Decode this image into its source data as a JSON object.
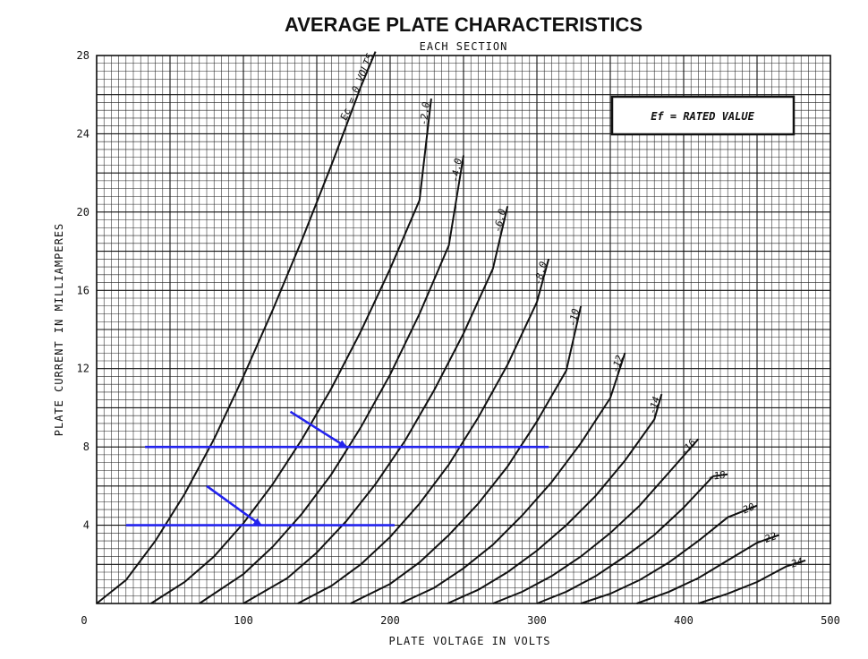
{
  "chart_data": {
    "type": "line",
    "title": "AVERAGE PLATE CHARACTERISTICS",
    "subtitle": "EACH SECTION",
    "xlabel": "PLATE VOLTAGE IN VOLTS",
    "ylabel": "PLATE CURRENT IN MILLIAMPERES",
    "xlim": [
      0,
      500
    ],
    "ylim": [
      0,
      28
    ],
    "xticks": [
      "0",
      "100",
      "200",
      "300",
      "400",
      "500"
    ],
    "yticks": [
      "4",
      "8",
      "12",
      "16",
      "20",
      "24",
      "28"
    ],
    "grid": true,
    "annotation": "Ef = RATED VALUE",
    "series": [
      {
        "name": "Ec = 0 VOLTS",
        "x": [
          0,
          20,
          40,
          60,
          80,
          100,
          120,
          140,
          160,
          180,
          190
        ],
        "y": [
          0,
          1.2,
          3.2,
          5.6,
          8.4,
          11.6,
          15.0,
          18.6,
          22.4,
          26.4,
          28.2
        ]
      },
      {
        "name": "-2.0",
        "x": [
          37,
          60,
          80,
          100,
          120,
          140,
          160,
          180,
          200,
          220,
          228
        ],
        "y": [
          0,
          1.1,
          2.4,
          4.1,
          6.1,
          8.4,
          11.0,
          13.9,
          17.1,
          20.6,
          25.8
        ]
      },
      {
        "name": "-4.0",
        "x": [
          70,
          100,
          120,
          140,
          160,
          180,
          200,
          220,
          240,
          250
        ],
        "y": [
          0,
          1.5,
          2.9,
          4.6,
          6.6,
          9.0,
          11.7,
          14.8,
          18.3,
          22.9
        ]
      },
      {
        "name": "-6.0",
        "x": [
          100,
          130,
          150,
          170,
          190,
          210,
          230,
          250,
          270,
          280
        ],
        "y": [
          0,
          1.3,
          2.6,
          4.2,
          6.1,
          8.3,
          10.9,
          13.8,
          17.1,
          20.3
        ]
      },
      {
        "name": "-8.0",
        "x": [
          137,
          160,
          180,
          200,
          220,
          240,
          260,
          280,
          300,
          308
        ],
        "y": [
          0,
          0.9,
          2.0,
          3.4,
          5.1,
          7.1,
          9.5,
          12.2,
          15.4,
          17.6
        ]
      },
      {
        "name": "-10",
        "x": [
          173,
          200,
          220,
          240,
          260,
          280,
          300,
          320,
          330
        ],
        "y": [
          0,
          1.0,
          2.1,
          3.5,
          5.1,
          7.0,
          9.3,
          11.9,
          15.2
        ]
      },
      {
        "name": "-12",
        "x": [
          207,
          230,
          250,
          270,
          290,
          310,
          330,
          350,
          360
        ],
        "y": [
          0,
          0.8,
          1.8,
          3.0,
          4.5,
          6.2,
          8.2,
          10.5,
          12.8
        ]
      },
      {
        "name": "-14",
        "x": [
          239,
          260,
          280,
          300,
          320,
          340,
          360,
          380,
          385
        ],
        "y": [
          0,
          0.7,
          1.6,
          2.7,
          4.0,
          5.5,
          7.3,
          9.4,
          10.7
        ]
      },
      {
        "name": "-16",
        "x": [
          270,
          290,
          310,
          330,
          350,
          370,
          390,
          410
        ],
        "y": [
          0,
          0.6,
          1.4,
          2.4,
          3.6,
          5.0,
          6.7,
          8.4
        ]
      },
      {
        "name": "-18",
        "x": [
          300,
          320,
          340,
          360,
          380,
          400,
          420,
          430
        ],
        "y": [
          0,
          0.6,
          1.4,
          2.4,
          3.5,
          4.9,
          6.5,
          6.6
        ]
      },
      {
        "name": "-20",
        "x": [
          330,
          350,
          370,
          390,
          410,
          430,
          450
        ],
        "y": [
          0,
          0.5,
          1.2,
          2.1,
          3.2,
          4.4,
          5.0
        ]
      },
      {
        "name": "-22",
        "x": [
          368,
          390,
          410,
          430,
          450,
          465
        ],
        "y": [
          0,
          0.6,
          1.3,
          2.2,
          3.1,
          3.5
        ]
      },
      {
        "name": "-24",
        "x": [
          410,
          430,
          450,
          470,
          483
        ],
        "y": [
          0,
          0.5,
          1.1,
          1.9,
          2.2
        ]
      }
    ],
    "overlays": {
      "horizontal_lines": [
        {
          "y": 8,
          "x_from": 33,
          "x_to": 308
        },
        {
          "y": 4,
          "x_from": 20,
          "x_to": 203
        }
      ],
      "arrows": [
        {
          "from": [
            132,
            9.8
          ],
          "to": [
            170,
            8
          ]
        },
        {
          "from": [
            75,
            6.0
          ],
          "to": [
            112,
            4
          ]
        }
      ]
    }
  }
}
